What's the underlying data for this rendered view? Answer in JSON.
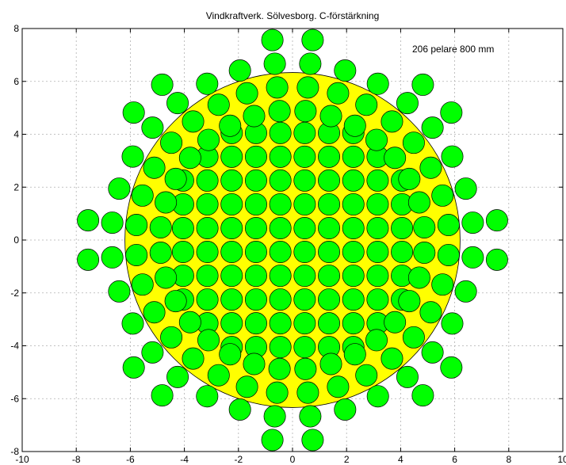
{
  "chart_data": {
    "type": "scatter",
    "title": "Vindkraftverk. Sölvesborg. C-förstärkning",
    "annotation": "206 pelare 800 mm",
    "xlabel": "",
    "ylabel": "",
    "xlim": [
      -10,
      10
    ],
    "ylim": [
      -8,
      8
    ],
    "xticks": [
      -10,
      -8,
      -6,
      -4,
      -2,
      0,
      2,
      4,
      6,
      8,
      10
    ],
    "yticks": [
      -8,
      -6,
      -4,
      -2,
      0,
      2,
      4,
      6,
      8
    ],
    "grid": true,
    "aspect": "equal",
    "foundation": {
      "shape": "circle",
      "center": [
        0,
        0
      ],
      "radius": 6.2,
      "color": "#ffff00"
    },
    "piles": {
      "diameter": 0.8,
      "count": 206,
      "color": "#00ff00",
      "edge_color": "#000000",
      "grid_layout": {
        "spacing": 0.9,
        "offset": 0.45,
        "max_radius": 4.75
      },
      "radial_layout": {
        "ray_count": 32,
        "radii": [
          4.9,
          5.8,
          6.7,
          7.6
        ],
        "angle_offset_deg": 5.625,
        "skip_outer_on_diagonal_rays": true
      }
    },
    "colors": {
      "foundation": "#ffff00",
      "pile": "#00ff00",
      "grid": "#b0b0b0"
    }
  }
}
